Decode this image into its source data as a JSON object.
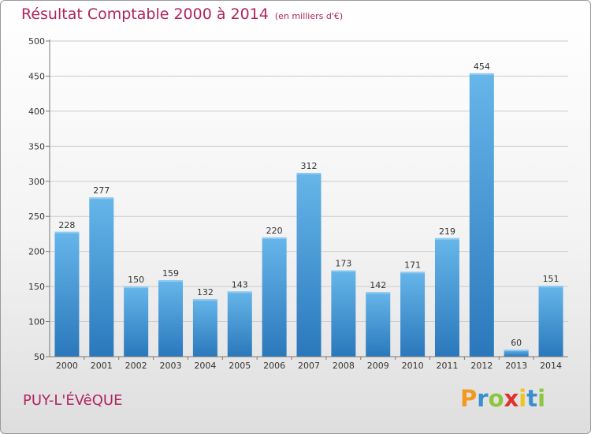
{
  "header": {
    "title": "Résultat Comptable 2000 à 2014",
    "subtitle": "(en milliers d'€)"
  },
  "footer": {
    "commune": "PUY-L'ÉVêQUE",
    "logo_text": "Proxiti"
  },
  "colors": {
    "title": "#b0245e",
    "bar_light": "#62b2e8",
    "bar_dark": "#2a7bbf",
    "axis": "#7a7a7a",
    "grid": "#c8c8c8"
  },
  "chart_data": {
    "type": "bar",
    "title": "Résultat Comptable 2000 à 2014",
    "subtitle": "(en milliers d'€)",
    "xlabel": "",
    "ylabel": "",
    "ylim": [
      50,
      500
    ],
    "yticks": [
      50,
      100,
      150,
      200,
      250,
      300,
      350,
      400,
      450,
      500
    ],
    "grid": true,
    "categories": [
      "2000",
      "2001",
      "2002",
      "2003",
      "2004",
      "2005",
      "2006",
      "2007",
      "2008",
      "2009",
      "2010",
      "2011",
      "2012",
      "2013",
      "2014"
    ],
    "values": [
      228,
      277,
      150,
      159,
      132,
      143,
      220,
      312,
      173,
      142,
      171,
      219,
      454,
      60,
      151
    ]
  }
}
